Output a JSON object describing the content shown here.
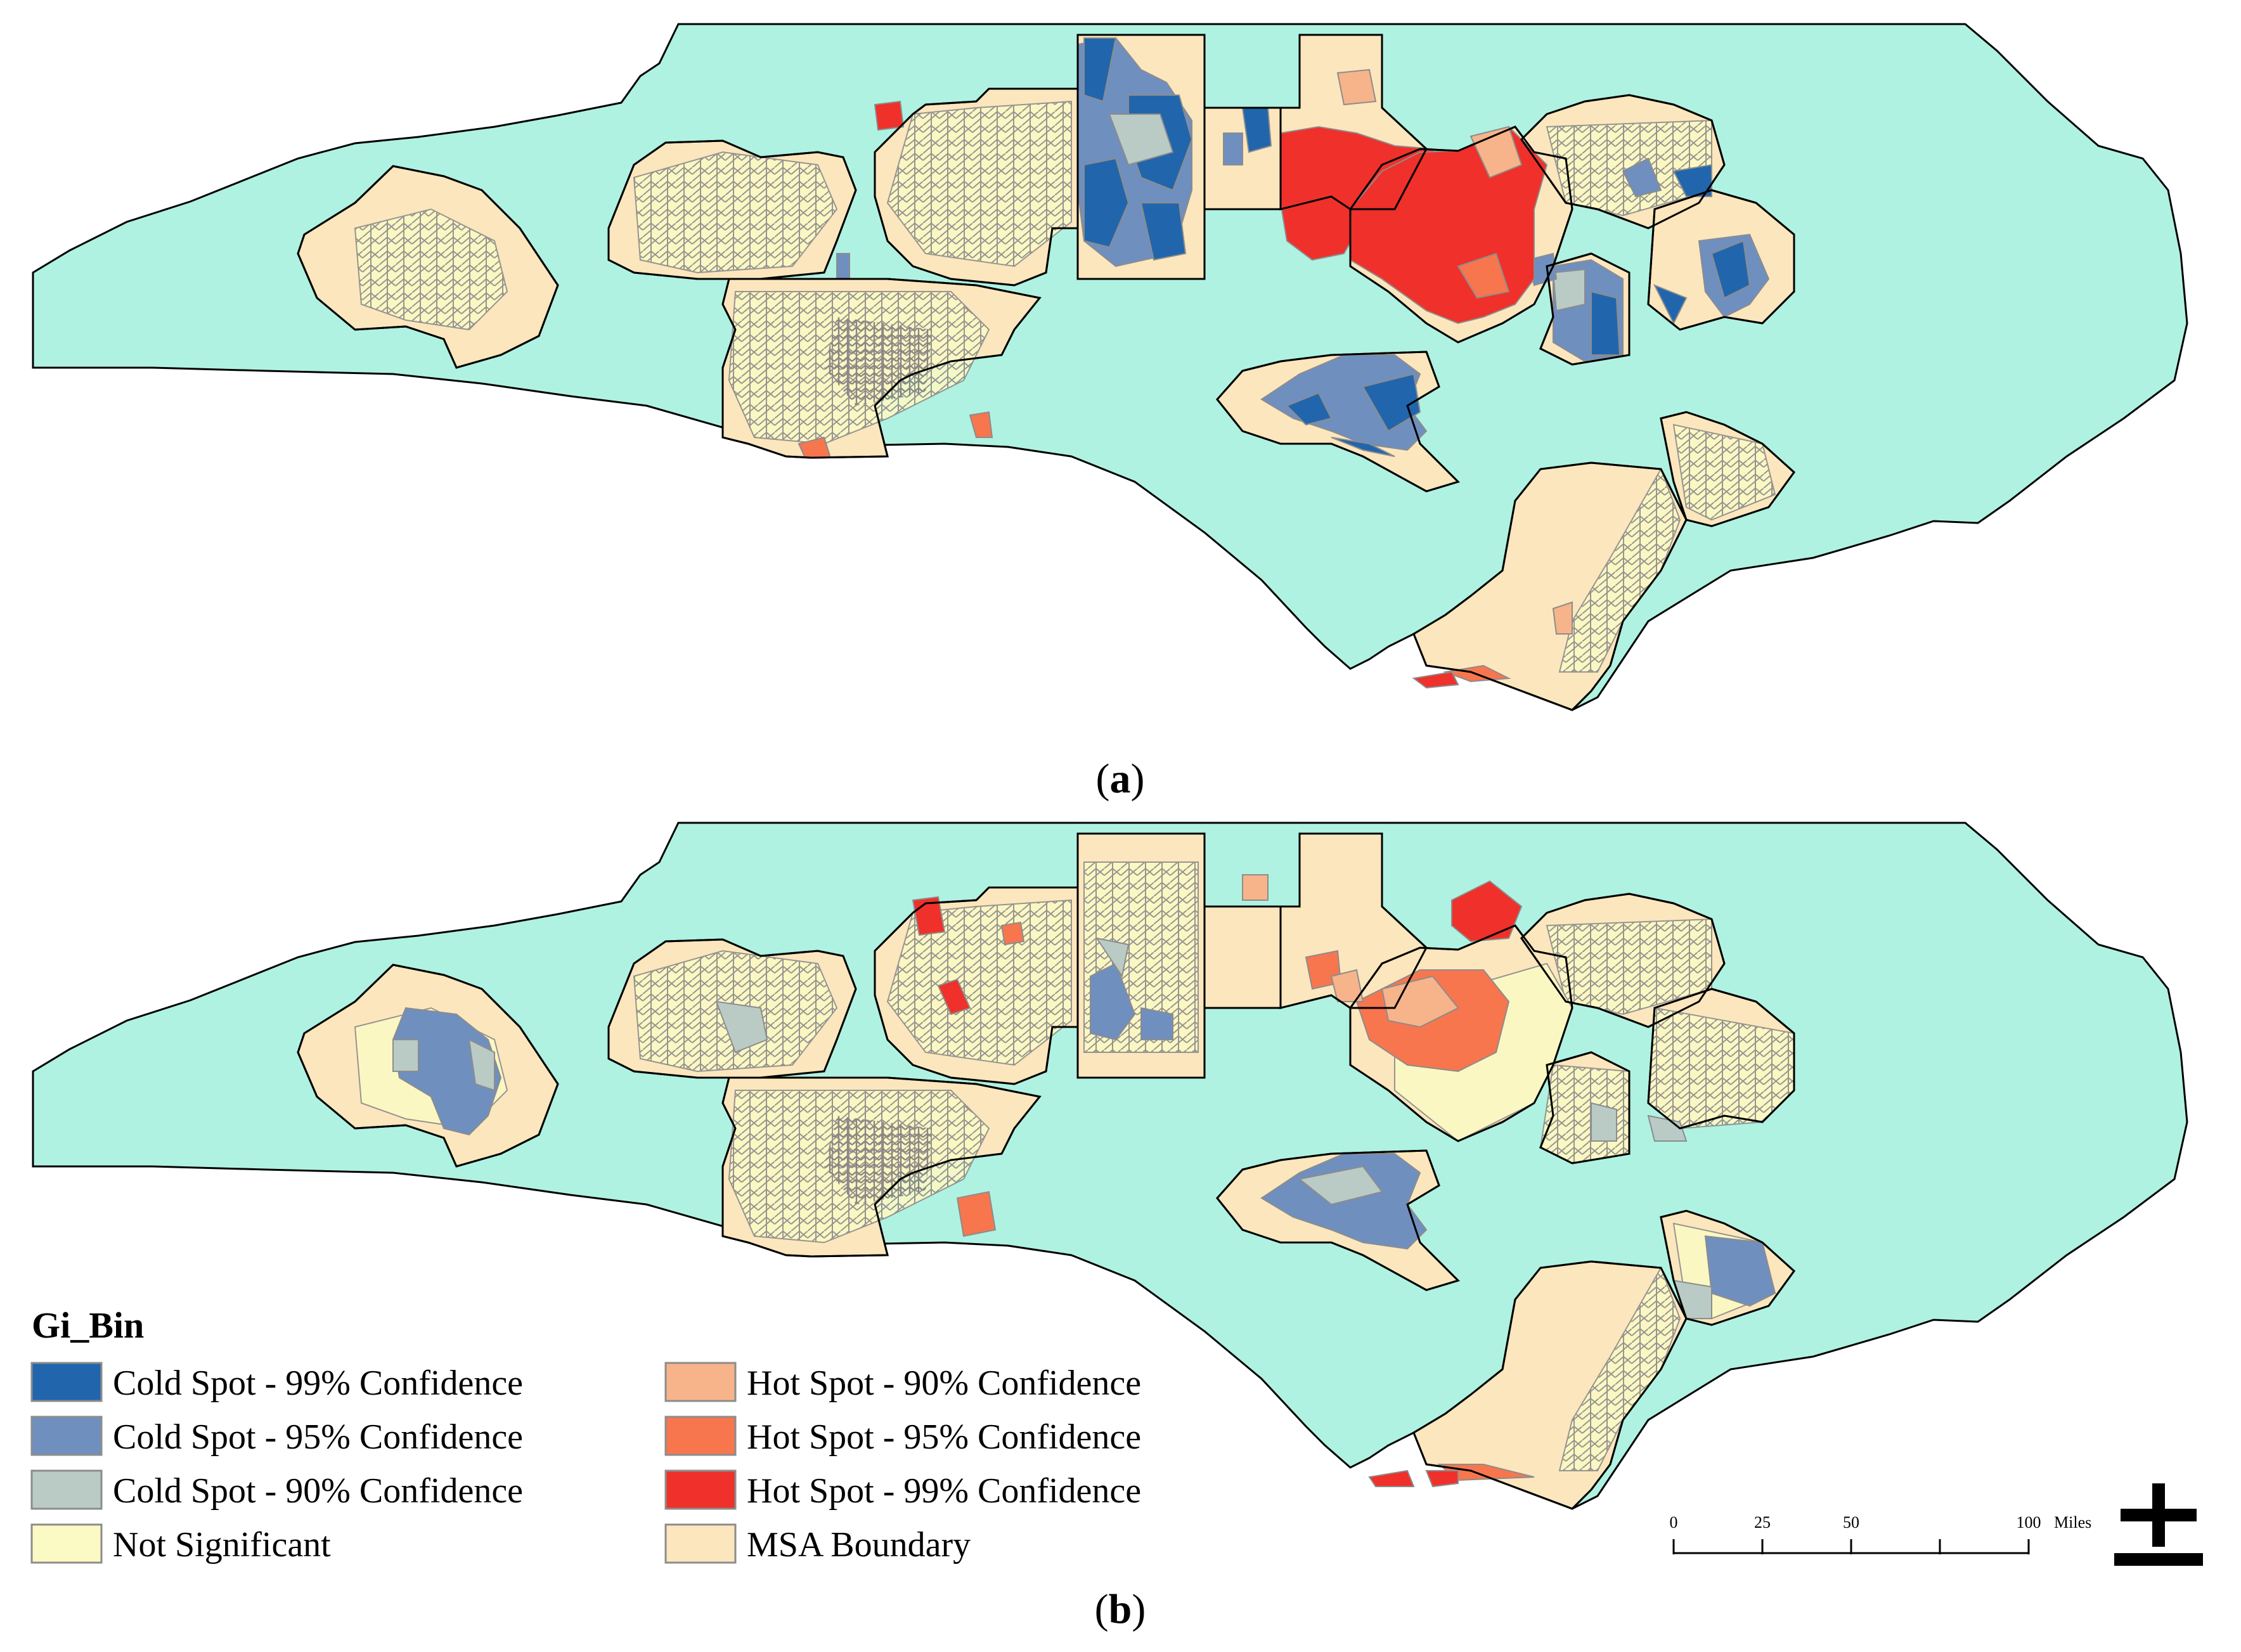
{
  "panels": [
    {
      "id": "a",
      "label_prefix": "(",
      "label_letter": "a",
      "label_suffix": ")"
    },
    {
      "id": "b",
      "label_prefix": "(",
      "label_letter": "b",
      "label_suffix": ")"
    }
  ],
  "legend": {
    "title": "Gi_Bin",
    "items": [
      {
        "label": "Cold Spot - 99% Confidence",
        "color": "#2166ac"
      },
      {
        "label": "Cold Spot - 95% Confidence",
        "color": "#6f8fbf"
      },
      {
        "label": "Cold Spot - 90% Confidence",
        "color": "#b9cbc4"
      },
      {
        "label": "Not Significant",
        "color": "#fbf9c4"
      },
      {
        "label": "Hot Spot - 90% Confidence",
        "color": "#f7b48a"
      },
      {
        "label": "Hot Spot - 95% Confidence",
        "color": "#f7764e"
      },
      {
        "label": "Hot Spot - 99% Confidence",
        "color": "#f0302a"
      },
      {
        "label": "MSA Boundary",
        "color": "#fce6bd"
      }
    ]
  },
  "scale_bar": {
    "ticks": [
      "0",
      "25",
      "50",
      "100"
    ],
    "unit": "Miles"
  },
  "colors": {
    "state_fill": "#aff2e2",
    "msa_fill": "#fce6bd",
    "not_significant": "#fbf9c4",
    "tract_lines": "#8c8c8c",
    "outline": "#000000"
  }
}
